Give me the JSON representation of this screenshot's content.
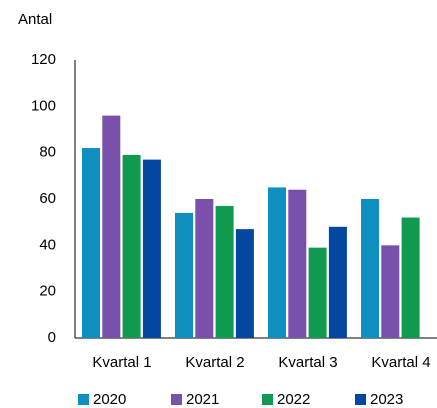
{
  "chart_data": {
    "type": "bar",
    "y_label": "Antal",
    "categories": [
      "Kvartal 1",
      "Kvartal 2",
      "Kvartal 3",
      "Kvartal 4"
    ],
    "series": [
      {
        "name": "2020",
        "color": "#0e8fc0",
        "values": [
          82,
          54,
          65,
          60
        ]
      },
      {
        "name": "2021",
        "color": "#7a51aa",
        "values": [
          96,
          60,
          64,
          40
        ]
      },
      {
        "name": "2022",
        "color": "#0f9a4f",
        "values": [
          79,
          57,
          39,
          52
        ]
      },
      {
        "name": "2023",
        "color": "#0447a1",
        "values": [
          77,
          47,
          48,
          null
        ]
      }
    ],
    "ylim": [
      0,
      120
    ],
    "yticks": [
      0,
      20,
      40,
      60,
      80,
      100,
      120
    ],
    "grid": false,
    "legend": "bottom"
  }
}
